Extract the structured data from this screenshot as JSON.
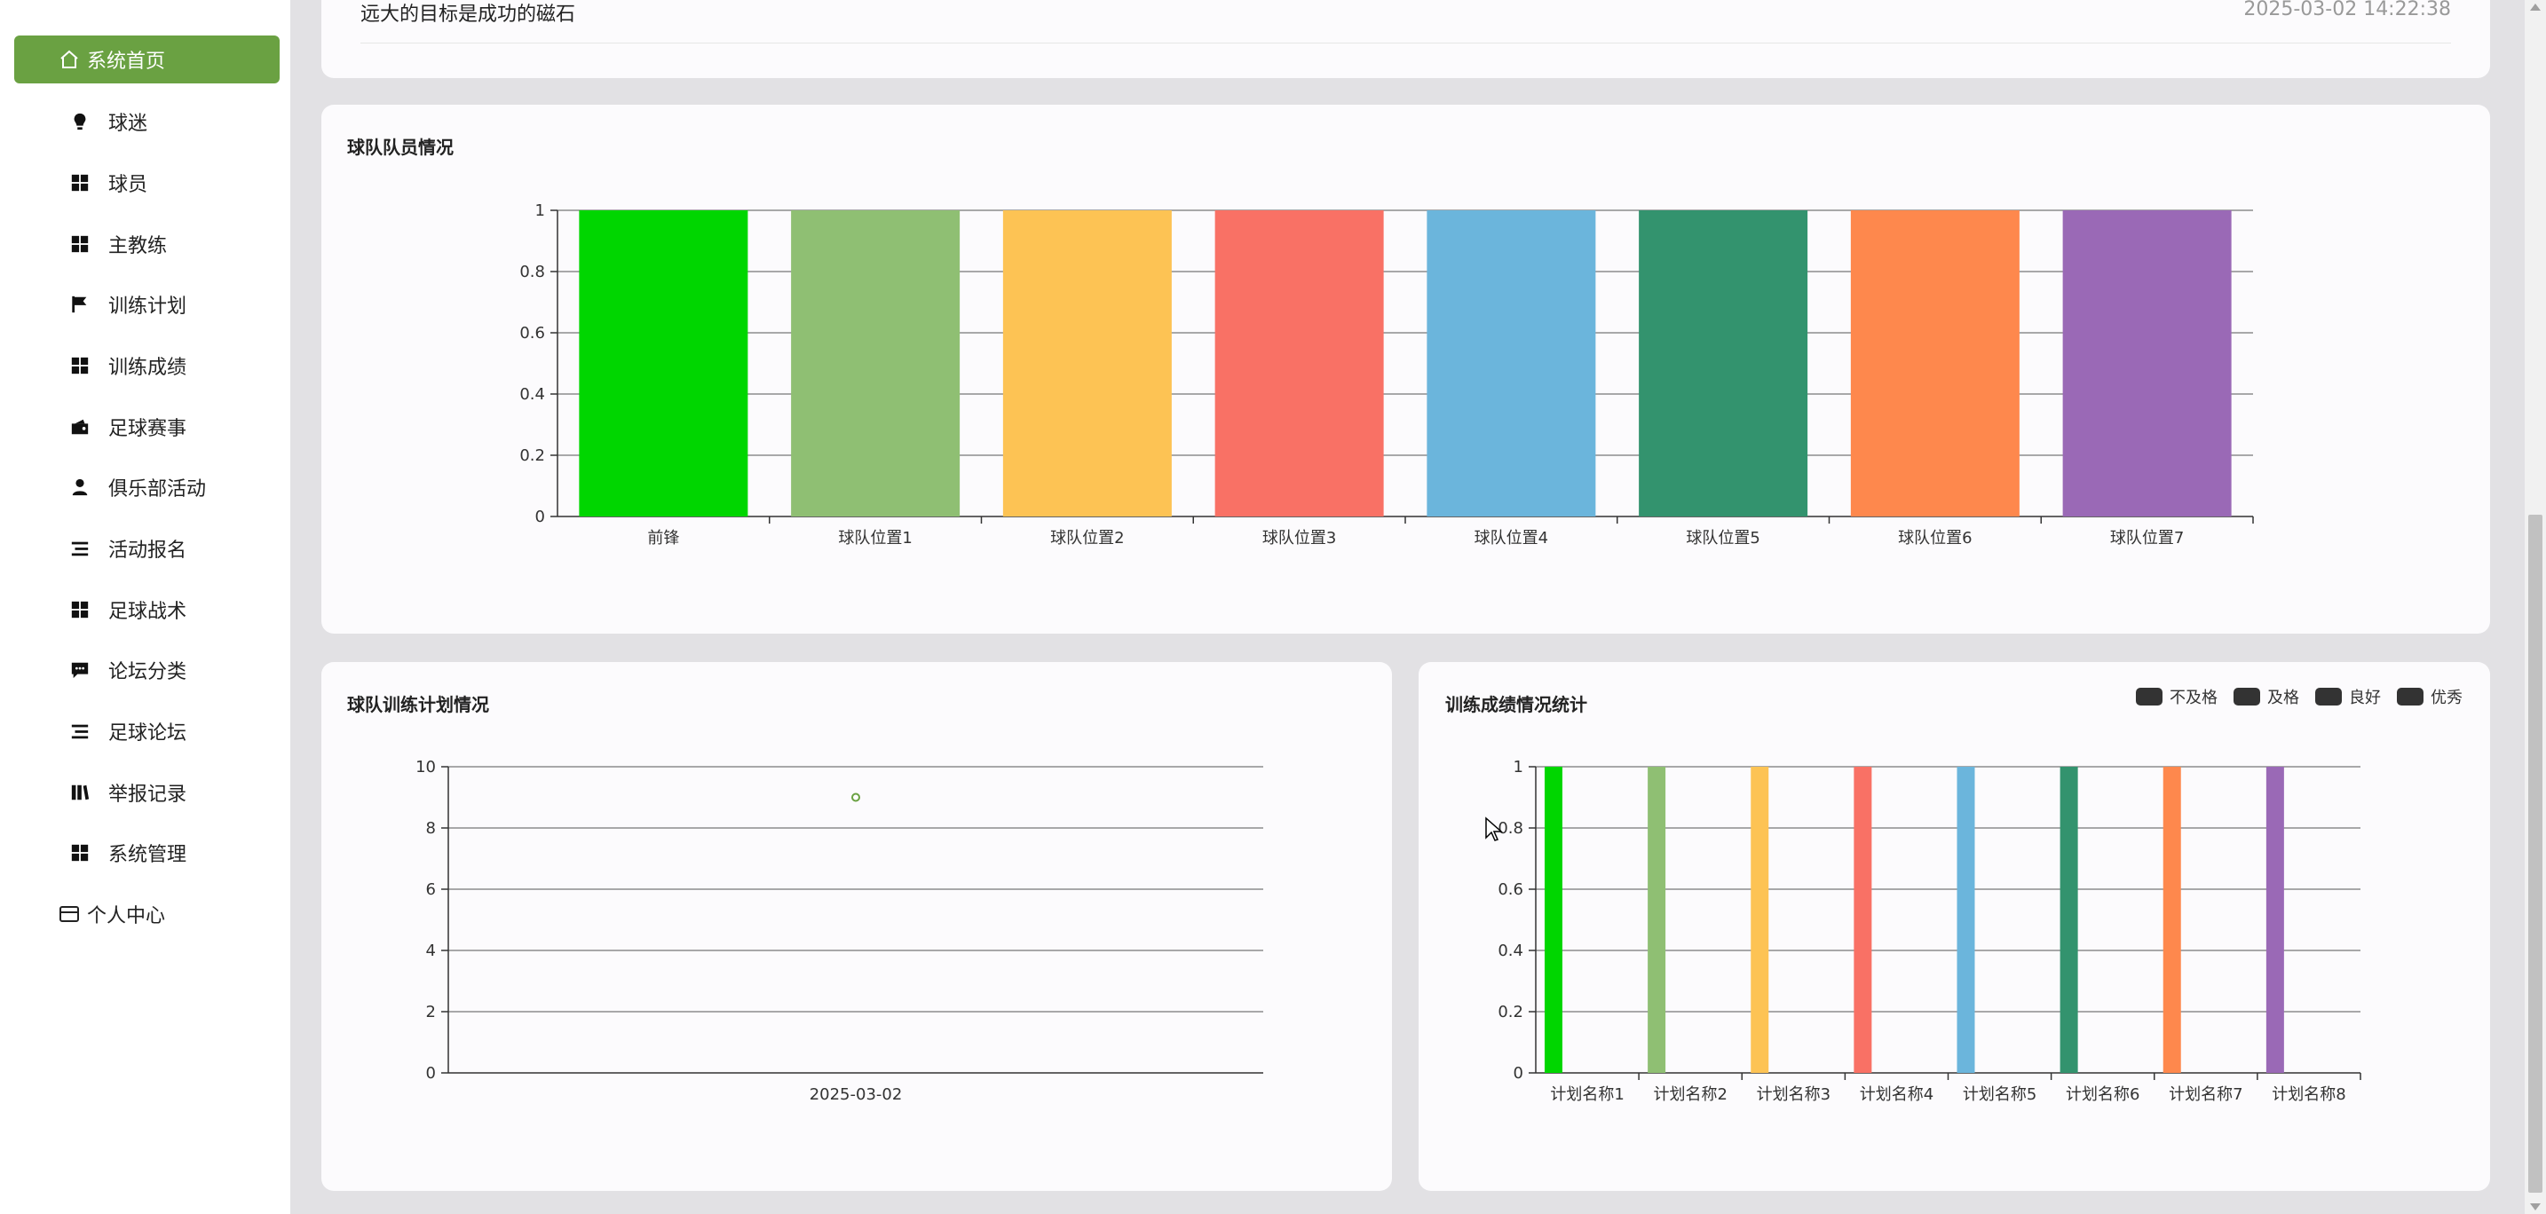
{
  "sidebar": {
    "items": [
      {
        "label": "系统首页",
        "icon": "home-icon"
      },
      {
        "label": "球迷",
        "icon": "bulb-icon"
      },
      {
        "label": "球员",
        "icon": "grid-icon"
      },
      {
        "label": "主教练",
        "icon": "grid-icon"
      },
      {
        "label": "训练计划",
        "icon": "flag-icon"
      },
      {
        "label": "训练成绩",
        "icon": "grid-icon"
      },
      {
        "label": "足球赛事",
        "icon": "wallet-icon"
      },
      {
        "label": "俱乐部活动",
        "icon": "user-icon"
      },
      {
        "label": "活动报名",
        "icon": "list-icon"
      },
      {
        "label": "足球战术",
        "icon": "grid-icon"
      },
      {
        "label": "论坛分类",
        "icon": "chat-icon"
      },
      {
        "label": "足球论坛",
        "icon": "list-icon"
      },
      {
        "label": "举报记录",
        "icon": "book-icon"
      },
      {
        "label": "系统管理",
        "icon": "grid-icon"
      },
      {
        "label": "个人中心",
        "icon": "card-icon"
      }
    ]
  },
  "notice": {
    "text": "远大的目标是成功的磁石",
    "time": "2025-03-02 14:22:38"
  },
  "cards": {
    "team_members_title": "球队队员情况",
    "training_plan_title": "球队训练计划情况",
    "training_score_title": "训练成绩情况统计"
  },
  "legend": [
    "不及格",
    "及格",
    "良好",
    "优秀"
  ],
  "colors": {
    "accent": "#6aa142",
    "series": [
      "#00d600",
      "#8fbf73",
      "#fdc354",
      "#f97165",
      "#6bb5dc",
      "#33936e",
      "#fe884d",
      "#9a69b6"
    ]
  },
  "chart_data": [
    {
      "type": "bar",
      "title": "球队队员情况",
      "categories": [
        "前锋",
        "球队位置1",
        "球队位置2",
        "球队位置3",
        "球队位置4",
        "球队位置5",
        "球队位置6",
        "球队位置7"
      ],
      "values": [
        1,
        1,
        1,
        1,
        1,
        1,
        1,
        1
      ],
      "ylim": [
        0,
        1
      ],
      "yticks": [
        "0",
        "0.2",
        "0.4",
        "0.6",
        "0.8",
        "1"
      ],
      "grid": true
    },
    {
      "type": "scatter",
      "title": "球队训练计划情况",
      "x": [
        "2025-03-02"
      ],
      "values": [
        9
      ],
      "ylim": [
        0,
        10
      ],
      "yticks": [
        "0",
        "2",
        "4",
        "6",
        "8",
        "10"
      ],
      "grid": true
    },
    {
      "type": "bar",
      "title": "训练成绩情况统计",
      "categories": [
        "计划名称1",
        "计划名称2",
        "计划名称3",
        "计划名称4",
        "计划名称5",
        "计划名称6",
        "计划名称7",
        "计划名称8"
      ],
      "series": [
        {
          "name": "不及格",
          "values": [
            1,
            1,
            1,
            1,
            1,
            1,
            1,
            1
          ]
        },
        {
          "name": "及格",
          "values": [
            0,
            0,
            0,
            0,
            0,
            0,
            0,
            0
          ]
        },
        {
          "name": "良好",
          "values": [
            0,
            0,
            0,
            0,
            0,
            0,
            0,
            0
          ]
        },
        {
          "name": "优秀",
          "values": [
            0,
            0,
            0,
            0,
            0,
            0,
            0,
            0
          ]
        }
      ],
      "ylim": [
        0,
        1
      ],
      "yticks": [
        "0",
        "0.2",
        "0.4",
        "0.6",
        "0.8",
        "1"
      ],
      "legend": "top-right",
      "grid": true
    }
  ]
}
